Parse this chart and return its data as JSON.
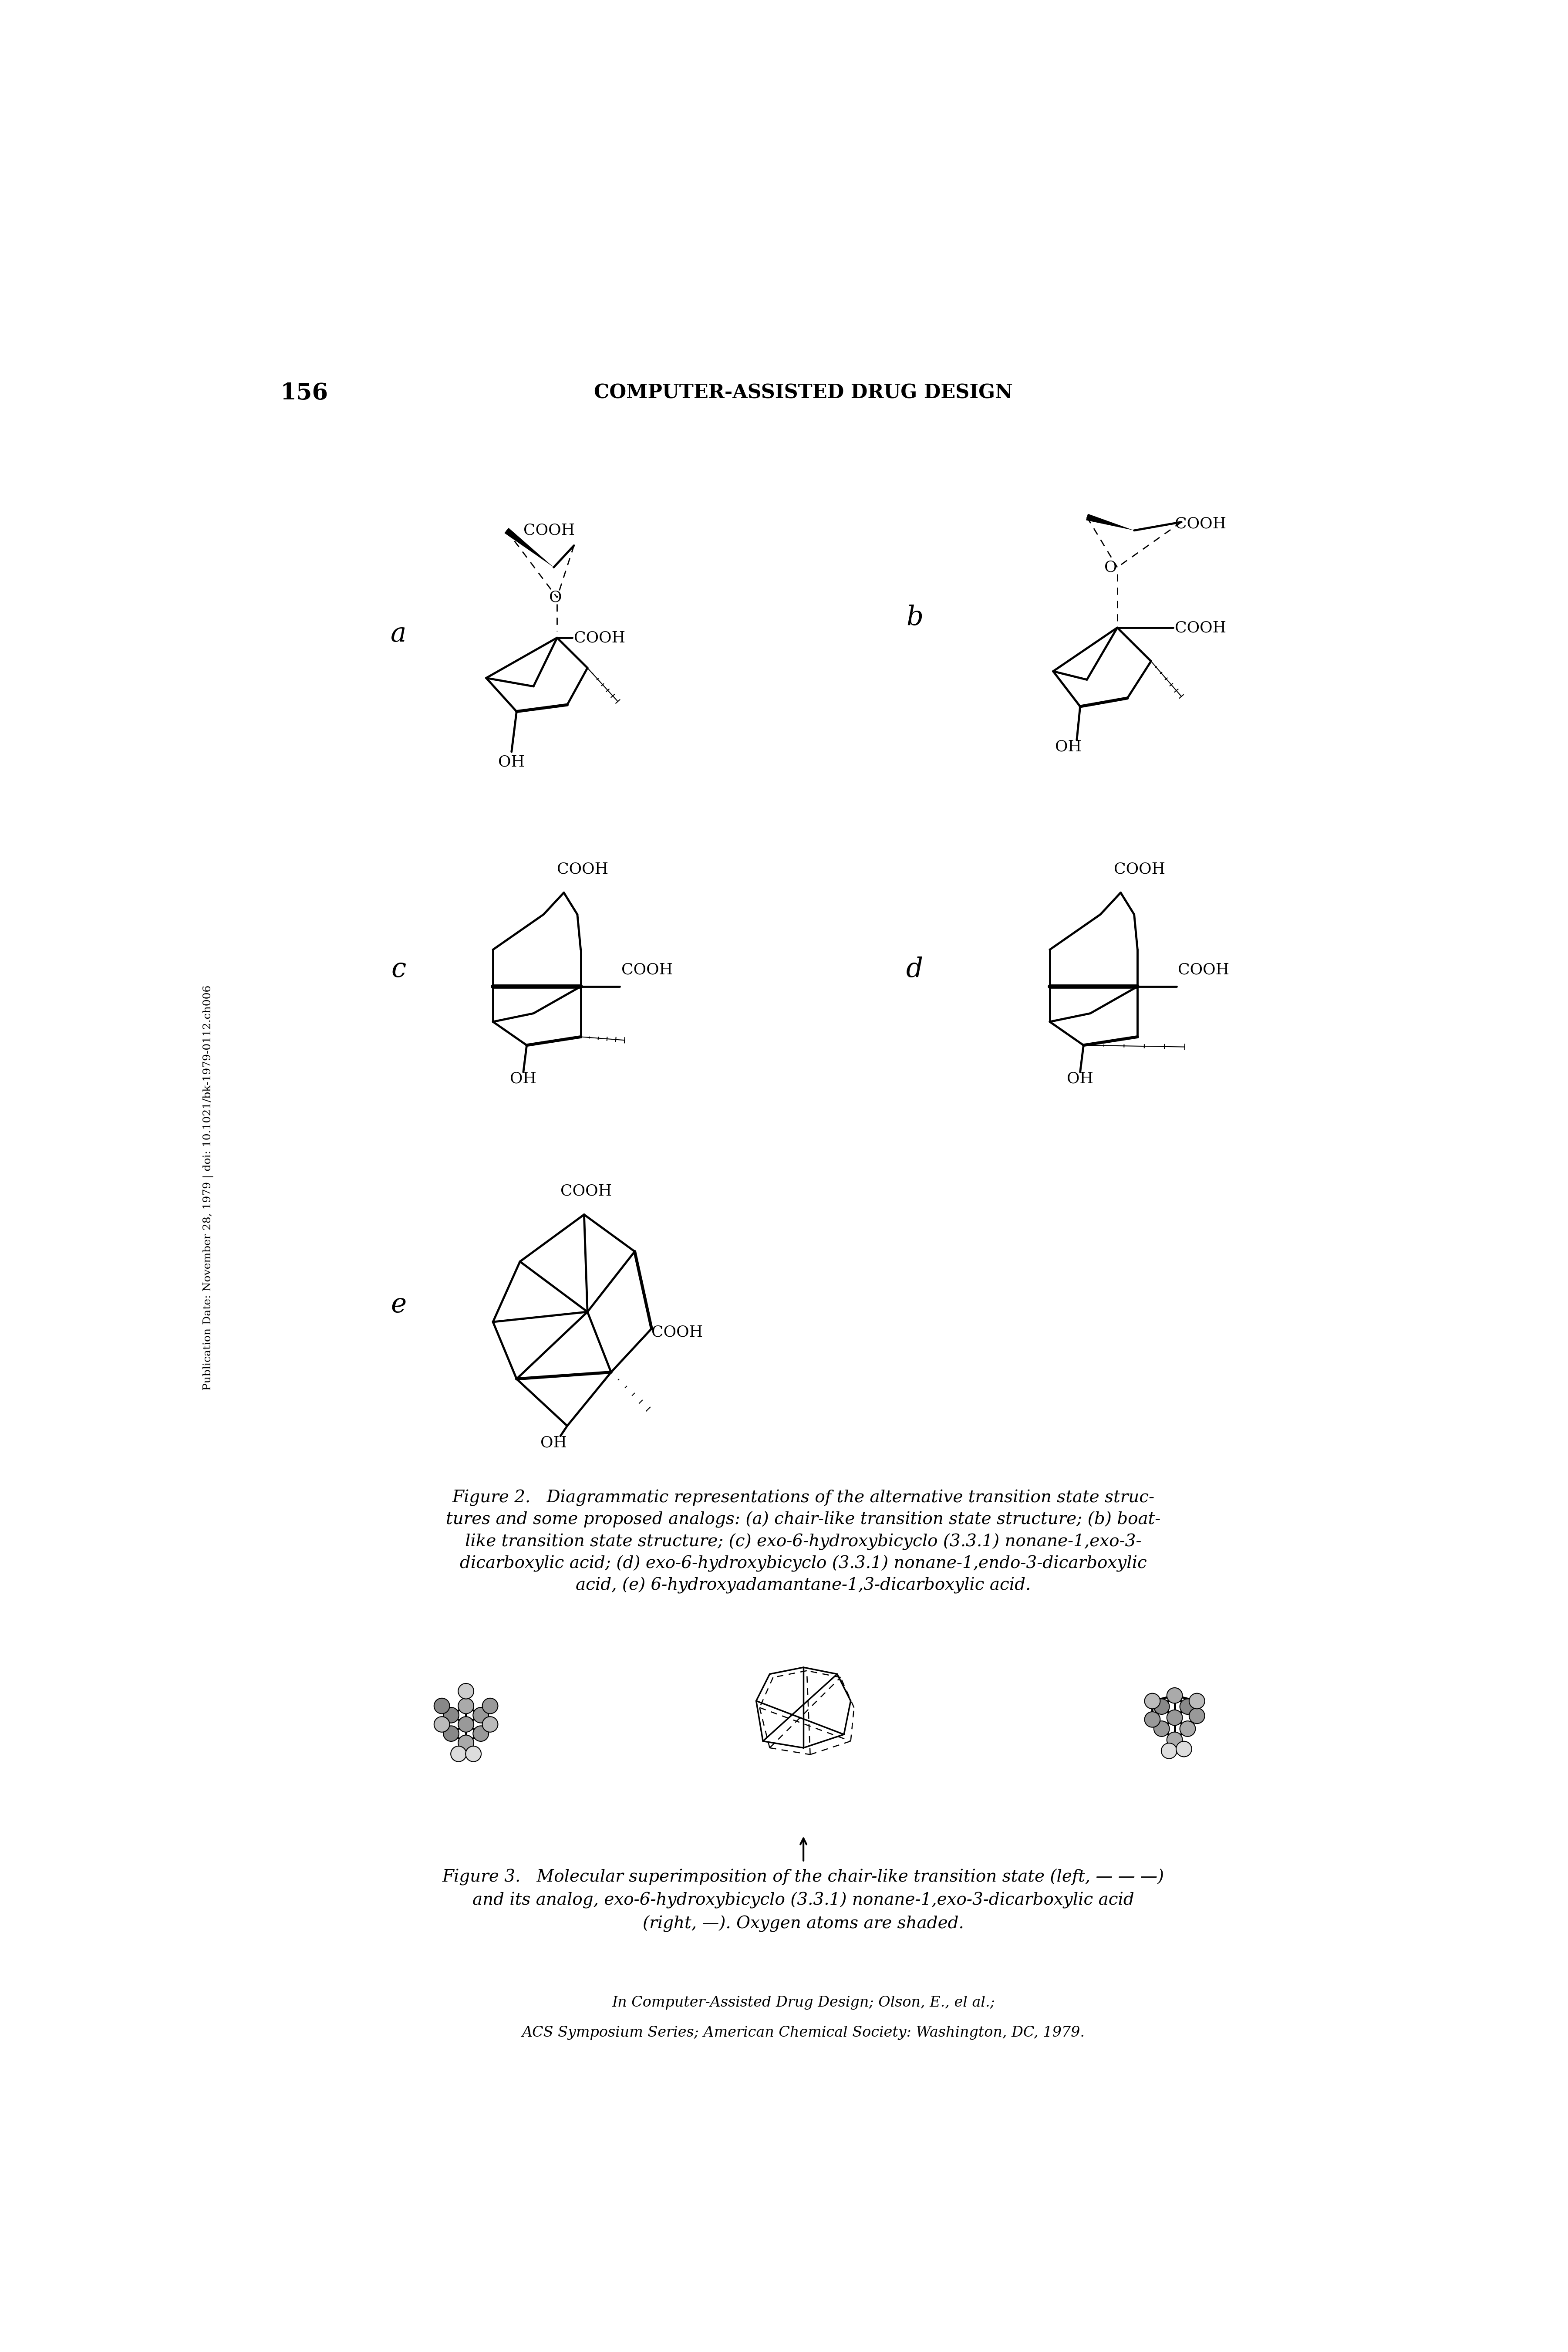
{
  "page_width": 36.01,
  "page_height": 54.0,
  "bg_color": "#ffffff",
  "header_page_num": "156",
  "header_title": "COMPUTER-ASSISTED DRUG DESIGN",
  "left_margin_text": "Publication Date: November 28, 1979 | doi: 10.1021/bk-1979-0112.ch006",
  "label_a": "a",
  "label_b": "b",
  "label_c": "c",
  "label_d": "d",
  "label_e": "e",
  "fig2_caption": "Figure 2.   Diagrammatic representations of the alternative transition state struc-\ntures and some proposed analogs: (a) chair-like transition state structure; (b) boat-\nlike transition state structure; (c) exo-6-hydroxybicyclo (3.3.1) nonane-1,exo-3-\ndicarboxylic acid; (d) exo-6-hydroxybicyclo (3.3.1) nonane-1,endo-3-dicarboxylic\nacid, (e) 6-hydroxyadamantane-1,3-dicarboxylic acid.",
  "fig3_caption_line1": "Figure 3.   Molecular superimposition of the chair-like transition state (left, — — —)",
  "fig3_caption_line2": "and its analog, exo-6-hydroxybicyclo (3.3.1) nonane-1,exo-3-dicarboxylic acid",
  "fig3_caption_line3": "(right, —). Oxygen atoms are shaded.",
  "footer_line1": "In Computer-Assisted Drug Design; Olson, E., el al.;",
  "footer_line2": "ACS Symposium Series; American Chemical Society: Washington, DC, 1979."
}
